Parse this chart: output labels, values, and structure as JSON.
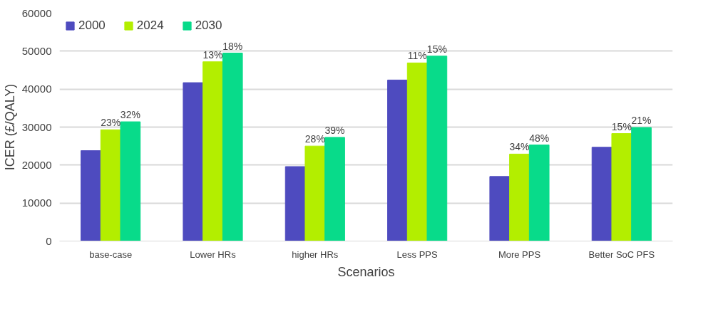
{
  "chart_data": {
    "type": "bar",
    "xlabel": "Scenarios",
    "ylabel": "ICER (£/QALY)",
    "categories": [
      "base-case",
      "Lower HRs",
      "higher HRs",
      "Less PPS",
      "More PPS",
      "Better SoC PFS"
    ],
    "series": [
      {
        "name": "2000",
        "color": "#4e4bbf",
        "values": [
          23800,
          41700,
          19600,
          42400,
          17000,
          24700
        ]
      },
      {
        "name": "2024",
        "color": "#b3ee00",
        "values": [
          29300,
          47200,
          25000,
          46900,
          22900,
          28300
        ]
      },
      {
        "name": "2030",
        "color": "#08db8a",
        "values": [
          31400,
          49500,
          27300,
          48700,
          25300,
          29900
        ]
      }
    ],
    "annotations": [
      "23%",
      "32%",
      "13%",
      "18%",
      "28%",
      "39%",
      "11%",
      "15%",
      "34%",
      "48%",
      "15%",
      "21%"
    ],
    "ylim": [
      0,
      60000
    ],
    "yticks": [
      0,
      10000,
      20000,
      30000,
      40000,
      50000,
      60000
    ],
    "grid": "y",
    "legend": "top left"
  }
}
